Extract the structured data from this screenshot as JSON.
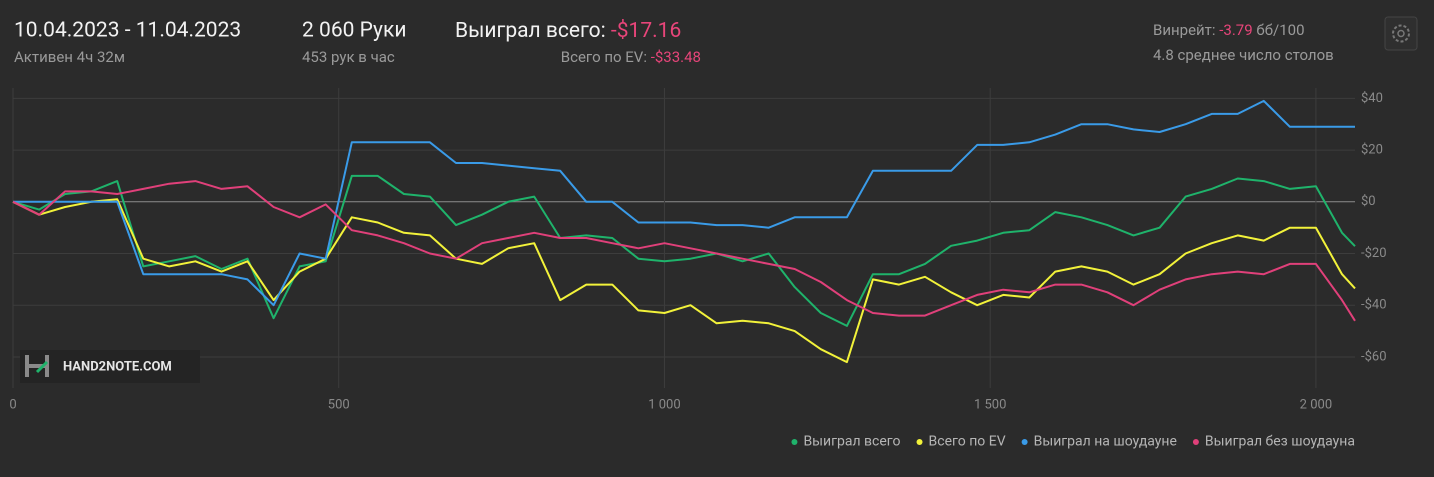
{
  "header": {
    "date_range": "10.04.2023 - 11.04.2023",
    "active": "Активен 4ч 32м",
    "hands": "2 060 Руки",
    "hands_per_hour": "453 рук в час",
    "won_label": "Выиграл всего:",
    "won_value": "-$17.16",
    "ev_label": "Всего по EV:",
    "ev_value": "-$33.48",
    "winrate_label": "Винрейт:",
    "winrate_value": "-3.79",
    "winrate_unit": "бб/100",
    "tables": "4.8 среднее число столов"
  },
  "watermark": "HAND2NOTE.COM",
  "chart_data": {
    "type": "line",
    "grid": true,
    "legend": "bottom-right",
    "xlim": [
      0,
      2060
    ],
    "ylim": [
      -72,
      44
    ],
    "xticks": [
      0,
      500,
      {
        "value": 1000,
        "label": "1 000"
      },
      {
        "value": 1500,
        "label": "1 500"
      },
      {
        "value": 2000,
        "label": "2 000"
      }
    ],
    "yticks": [
      {
        "value": 40,
        "label": "$40"
      },
      {
        "value": 20,
        "label": "$20"
      },
      {
        "value": 0,
        "label": "$0"
      },
      {
        "value": -20,
        "label": "-$20"
      },
      {
        "value": -40,
        "label": "-$40"
      },
      {
        "value": -60,
        "label": "-$60"
      }
    ],
    "x": [
      0,
      40,
      80,
      120,
      160,
      200,
      240,
      280,
      320,
      360,
      400,
      440,
      480,
      520,
      560,
      600,
      640,
      680,
      720,
      760,
      800,
      840,
      880,
      920,
      960,
      1000,
      1040,
      1080,
      1120,
      1160,
      1200,
      1240,
      1280,
      1320,
      1360,
      1400,
      1440,
      1480,
      1520,
      1560,
      1600,
      1640,
      1680,
      1720,
      1760,
      1800,
      1840,
      1880,
      1920,
      1960,
      2000,
      2040,
      2060
    ],
    "series": [
      {
        "name": "Выиграл всего",
        "color": "#1fb36b",
        "values": [
          0,
          -3,
          3,
          4,
          8,
          -25,
          -23,
          -21,
          -26,
          -22,
          -45,
          -25,
          -23,
          10,
          10,
          3,
          2,
          -9,
          -5,
          0,
          2,
          -14,
          -13,
          -14,
          -22,
          -23,
          -22,
          -20,
          -23,
          -20,
          -33,
          -43,
          -48,
          -28,
          -28,
          -24,
          -17,
          -15,
          -12,
          -11,
          -4,
          -6,
          -9,
          -13,
          -10,
          2,
          5,
          9,
          8,
          5,
          6,
          -12,
          -17.16
        ]
      },
      {
        "name": "Всего по EV",
        "color": "#f2f23a",
        "values": [
          0,
          -5,
          -2,
          0,
          1,
          -22,
          -25,
          -23,
          -27,
          -23,
          -38,
          -27,
          -22,
          -6,
          -8,
          -12,
          -13,
          -22,
          -24,
          -18,
          -16,
          -38,
          -32,
          -32,
          -42,
          -43,
          -40,
          -47,
          -46,
          -47,
          -50,
          -57,
          -62,
          -30,
          -32,
          -29,
          -35,
          -40,
          -36,
          -37,
          -27,
          -25,
          -27,
          -32,
          -28,
          -20,
          -16,
          -13,
          -15,
          -10,
          -10,
          -28,
          -33.48
        ]
      },
      {
        "name": "Выиграл на шоудауне",
        "color": "#3a9be8",
        "values": [
          0,
          0,
          0,
          0,
          0,
          -28,
          -28,
          -28,
          -28,
          -30,
          -40,
          -20,
          -22,
          23,
          23,
          23,
          23,
          15,
          15,
          14,
          13,
          12,
          0,
          0,
          -8,
          -8,
          -8,
          -9,
          -9,
          -10,
          -6,
          -6,
          -6,
          12,
          12,
          12,
          12,
          22,
          22,
          23,
          26,
          30,
          30,
          28,
          27,
          30,
          34,
          34,
          39,
          29,
          29,
          29,
          29
        ]
      },
      {
        "name": "Выиграл без шоудауна",
        "color": "#e0407a",
        "values": [
          0,
          -5,
          4,
          4,
          3,
          5,
          7,
          8,
          5,
          6,
          -2,
          -6,
          -1,
          -11,
          -13,
          -16,
          -20,
          -22,
          -16,
          -14,
          -12,
          -14,
          -14,
          -16,
          -18,
          -16,
          -18,
          -20,
          -22,
          -24,
          -26,
          -31,
          -38,
          -43,
          -44,
          -44,
          -40,
          -36,
          -34,
          -35,
          -32,
          -32,
          -35,
          -40,
          -34,
          -30,
          -28,
          -27,
          -28,
          -24,
          -24,
          -38,
          -46
        ]
      }
    ]
  }
}
